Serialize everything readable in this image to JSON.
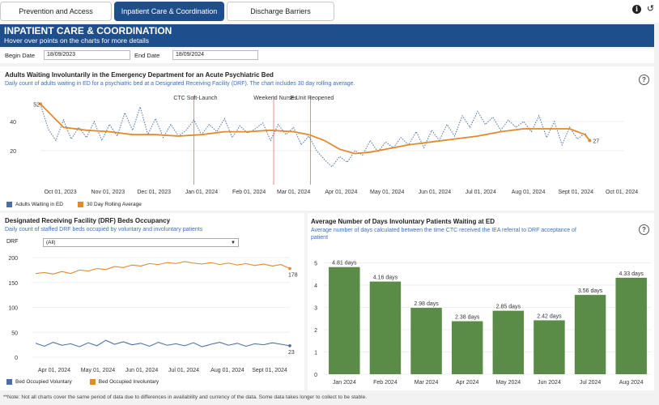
{
  "tabs": [
    {
      "label": "Prevention and Access",
      "active": false
    },
    {
      "label": "Inpatient Care & Coordination",
      "active": true
    },
    {
      "label": "Discharge Barriers",
      "active": false
    }
  ],
  "banner": {
    "title": "INPATIENT CARE & COORDINATION",
    "subtitle": "Hover over points on the charts for more details"
  },
  "filters": {
    "begin_label": "Begin Date",
    "begin_value": "18/09/2023",
    "end_label": "End Date",
    "end_value": "18/09/2024"
  },
  "panel1": {
    "title": "Adults Waiting Involuntarily in the Emergency Department for an Acute Psychiatric Bed",
    "subtitle": "Daily count of adults waiting in ED for a psychiatric bed at a Designated Receiving Facility (DRF). The chart includes 30 day rolling average.",
    "legend_a": "Adults Waiting in ED",
    "legend_b": "30 Day Rolling Average"
  },
  "panel2": {
    "title": "Designated Receiving Facility (DRF) Beds Occupancy",
    "subtitle": "Daily count of staffed DRF beds occupied by voluntary and involuntary patients",
    "drf_label": "DRF",
    "drf_value": "(All)",
    "legend_a": "Bed Occupied Voluntary",
    "legend_b": "Bed Occupied Involuntary"
  },
  "panel3": {
    "title": "Average Number of Days Involuntary Patients Waiting at ED",
    "subtitle_line1": "Average number of days calculated between the time CTC received the IEA referral to DRF acceptance of",
    "subtitle_line2": "patient"
  },
  "note": "**Note:  Not all charts cover the same period of data due to differences in availability and currency of the data.  Some data takes longer to collect to be stable.",
  "colors": {
    "blue": "#4a6fa5",
    "orange": "#e08a2c",
    "green": "#5b8c47",
    "navy": "#1f4e8c",
    "ref": "#e07070"
  },
  "chart_data": [
    {
      "type": "line",
      "title": "Adults Waiting Involuntarily in the Emergency Department for an Acute Psychiatric Bed",
      "x_ticks": [
        "Oct 01, 2023",
        "Nov 01, 2023",
        "Dec 01, 2023",
        "Jan 01, 2024",
        "Feb 01, 2024",
        "Mar 01, 2024",
        "Apr 01, 2024",
        "May 01, 2024",
        "Jun 01, 2024",
        "Jul 01, 2024",
        "Aug 01, 2024",
        "Sept 01, 2024",
        "Oct 01, 2024"
      ],
      "y_ticks": [
        20,
        40
      ],
      "ylim": [
        0,
        60
      ],
      "x_range_days": [
        0,
        380
      ],
      "tick_days": [
        13,
        44,
        74,
        105,
        136,
        165,
        196,
        226,
        257,
        287,
        318,
        349,
        379
      ],
      "annotations": [
        {
          "label": "CTC Soft-Launch",
          "day": 100
        },
        {
          "label": "Weekend Nurses",
          "day": 152
        },
        {
          "label": "E-Unit Reopened",
          "day": 176
        }
      ],
      "start_label": "52",
      "end_label": "27",
      "series": [
        {
          "name": "Adults Waiting in ED",
          "style": "dotted",
          "days": [
            0,
            5,
            10,
            15,
            20,
            25,
            30,
            35,
            40,
            45,
            50,
            55,
            60,
            65,
            70,
            75,
            80,
            85,
            90,
            95,
            100,
            105,
            110,
            115,
            120,
            125,
            130,
            135,
            140,
            145,
            150,
            155,
            160,
            165,
            170,
            175,
            180,
            185,
            190,
            195,
            200,
            205,
            210,
            215,
            220,
            225,
            230,
            235,
            240,
            245,
            250,
            255,
            260,
            265,
            270,
            275,
            280,
            285,
            290,
            295,
            300,
            305,
            310,
            315,
            320,
            325,
            330,
            335,
            340,
            345,
            350,
            355,
            358
          ],
          "values": [
            52,
            35,
            27,
            41,
            28,
            36,
            29,
            40,
            27,
            38,
            30,
            46,
            34,
            50,
            31,
            42,
            29,
            38,
            30,
            34,
            41,
            31,
            38,
            33,
            42,
            29,
            37,
            32,
            35,
            39,
            27,
            38,
            31,
            36,
            24,
            30,
            20,
            14,
            9,
            16,
            12,
            20,
            17,
            27,
            19,
            26,
            22,
            29,
            24,
            33,
            22,
            34,
            27,
            38,
            30,
            44,
            36,
            47,
            38,
            43,
            34,
            41,
            36,
            40,
            33,
            44,
            29,
            40,
            24,
            36,
            28,
            32,
            27
          ]
        },
        {
          "name": "30 Day Rolling Average",
          "style": "solid",
          "days": [
            0,
            15,
            30,
            45,
            60,
            75,
            90,
            105,
            120,
            135,
            150,
            165,
            175,
            185,
            195,
            205,
            215,
            225,
            240,
            255,
            270,
            285,
            300,
            315,
            330,
            345,
            355,
            358
          ],
          "values": [
            52,
            36,
            34,
            33,
            31,
            31,
            30,
            31,
            33,
            33,
            34,
            33,
            31,
            27,
            21,
            18,
            19,
            21,
            24,
            26,
            28,
            30,
            33,
            35,
            35,
            35,
            31,
            27
          ]
        }
      ]
    },
    {
      "type": "line",
      "title": "Designated Receiving Facility (DRF) Beds Occupancy",
      "x_ticks": [
        "Apr 01, 2024",
        "May 01, 2024",
        "Jun 01, 2024",
        "Jul 01, 2024",
        "Aug 01, 2024",
        "Sept 01, 2024"
      ],
      "y_ticks": [
        0,
        50,
        100,
        150,
        200
      ],
      "ylim": [
        0,
        200
      ],
      "end_labels": [
        "178",
        "23"
      ],
      "series": [
        {
          "name": "Bed Occupied Involuntary",
          "values": [
            168,
            170,
            167,
            172,
            168,
            175,
            173,
            178,
            176,
            182,
            180,
            185,
            183,
            188,
            186,
            190,
            188,
            192,
            189,
            187,
            190,
            186,
            189,
            185,
            188,
            184,
            187,
            183,
            186,
            178
          ]
        },
        {
          "name": "Bed Occupied Voluntary",
          "values": [
            28,
            22,
            30,
            24,
            27,
            21,
            29,
            23,
            34,
            26,
            31,
            25,
            28,
            22,
            30,
            24,
            27,
            23,
            29,
            21,
            26,
            30,
            24,
            28,
            22,
            27,
            25,
            29,
            26,
            23
          ]
        }
      ]
    },
    {
      "type": "bar",
      "title": "Average Number of Days Involuntary Patients Waiting at ED",
      "categories": [
        "Jan 2024",
        "Feb 2024",
        "Mar 2024",
        "Apr 2024",
        "May 2024",
        "Jun 2024",
        "Jul 2024",
        "Aug 2024"
      ],
      "values": [
        4.81,
        4.16,
        2.98,
        2.38,
        2.85,
        2.42,
        3.56,
        4.33
      ],
      "data_labels": [
        "4.81 days",
        "4.16 days",
        "2.98 days",
        "2.38 days",
        "2.85 days",
        "2.42 days",
        "3.56 days",
        "4.33 days"
      ],
      "y_ticks": [
        0,
        1,
        2,
        3,
        4,
        5
      ],
      "ylim": [
        0,
        5.2
      ]
    }
  ]
}
